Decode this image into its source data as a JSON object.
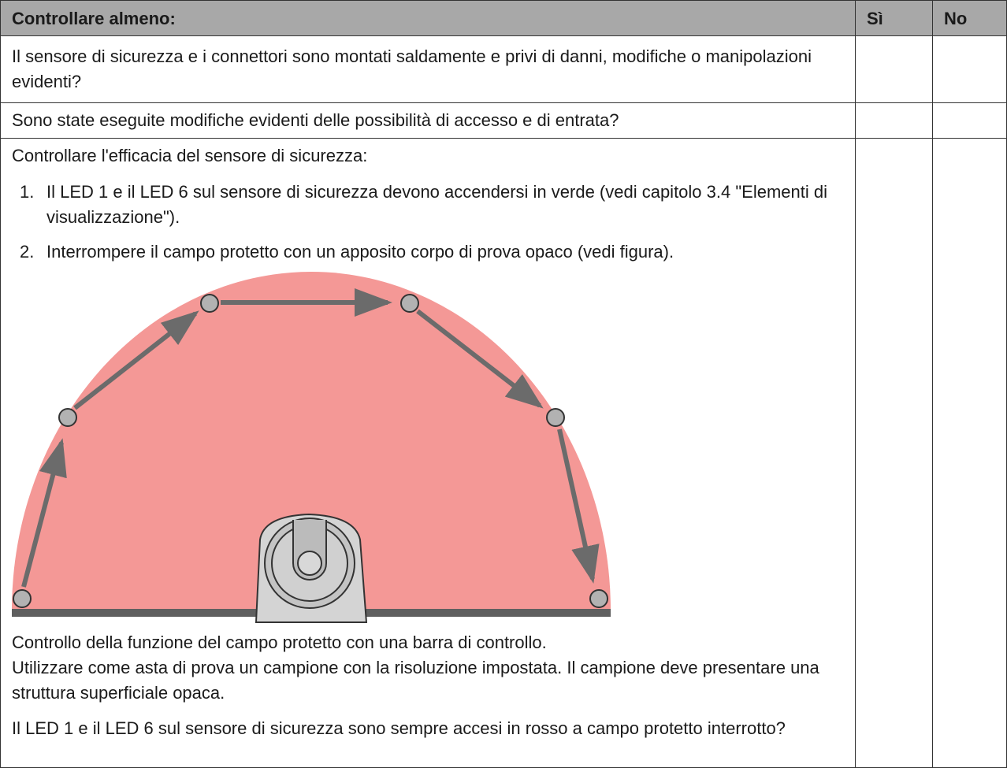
{
  "header": {
    "check": "Controllare almeno:",
    "yes": "Sì",
    "no": "No"
  },
  "rows": [
    {
      "text": "Il sensore di sicurezza e i connettori sono montati saldamente e privi di danni, modifiche o manipolazioni evidenti?"
    },
    {
      "text": "Sono state eseguite modifiche evidenti delle possibilità di accesso e di entrata?"
    },
    {
      "intro": "Controllare l'efficacia del sensore di sicurezza:",
      "steps": [
        {
          "number": "1.",
          "text": "Il LED 1 e il LED 6 sul sensore di sicurezza devono accendersi in verde (vedi capitolo 3.4 \"Elementi di visualizzazione\")."
        },
        {
          "number": "2.",
          "text": "Interrompere il campo protetto con un apposito corpo di prova opaco (vedi figura)."
        }
      ],
      "caption": [
        "Controllo della funzione del campo protetto con una barra di controllo.",
        "Utilizzare come asta di prova un campione con la risoluzione impostata. Il campione deve presentare una struttura superficiale opaca."
      ],
      "question": "Il LED 1 e il LED 6 sul sensore di sicurezza sono sempre accesi in rosso a campo protetto interrotto?"
    }
  ]
}
